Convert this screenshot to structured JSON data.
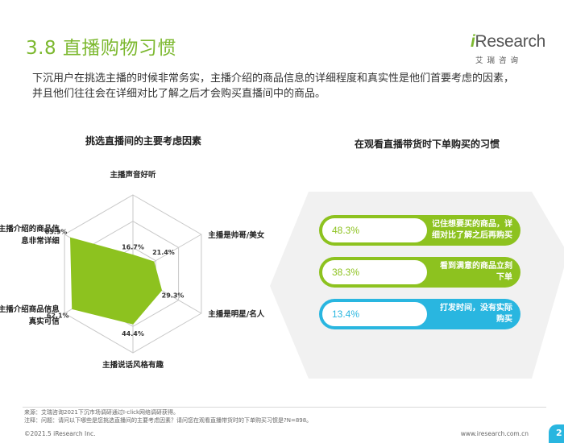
{
  "header": {
    "title": "3.8 直播购物习惯",
    "logo_main_i": "i",
    "logo_main_rest": "Research",
    "logo_sub": "艾瑞咨询"
  },
  "intro": {
    "line1": "下沉用户在挑选主播的时候非常务实，主播介绍的商品信息的详细程度和真实性是他们首要考虑的因素，",
    "line2": "并且他们往往会在详细对比了解之后才会购买直播间中的商品。"
  },
  "colors": {
    "green": "#8dc21f",
    "green_title": "#7cb82f",
    "blue": "#29b6e0",
    "grid": "#c8c8c8",
    "panel": "#f1f1f1"
  },
  "chart_data": [
    {
      "type": "radar",
      "title": "挑选直播间的主要考虑因素",
      "categories": [
        "主播声音好听",
        "主播是帅哥/美女",
        "主播是明星/名人",
        "主播说话风格有趣",
        "主播介绍商品信息真实可信",
        "主播介绍的商品信息非常详细"
      ],
      "category_lines": [
        [
          "主播声音好听"
        ],
        [
          "主播是帅哥/美女"
        ],
        [
          "主播是明星/名人"
        ],
        [
          "主播说话风格有趣"
        ],
        [
          "主播介绍商品信息",
          "真实可信"
        ],
        [
          "主播介绍的商品信",
          "息非常详细"
        ]
      ],
      "values": [
        16.7,
        21.4,
        29.3,
        44.4,
        62.1,
        63.9
      ],
      "value_labels": [
        "16.7%",
        "21.4%",
        "29.3%",
        "44.4%",
        "62.1%",
        "63.9%"
      ],
      "rmax": 70,
      "color": "#8dc21f"
    },
    {
      "type": "bar",
      "title": "在观看直播带货时下单购买的习惯",
      "categories": [
        "记住想要买的商品，详细对比了解之后再购买",
        "看到满意的商品立刻下单",
        "打发时间，没有实际购买"
      ],
      "category_lines": [
        [
          "记住想要买的商品，详",
          "细对比了解之后再购买"
        ],
        [
          "看到满意的商品立刻",
          "下单"
        ],
        [
          "打发时间，没有实际",
          "购买"
        ]
      ],
      "values": [
        48.3,
        38.3,
        13.4
      ],
      "value_labels": [
        "48.3%",
        "38.3%",
        "13.4%"
      ],
      "colors": [
        "#8dc21f",
        "#8dc21f",
        "#29b6e0"
      ]
    }
  ],
  "footer": {
    "source": "来源：艾瑞咨询2021下沉市场调研通过I-click网络调研获得。",
    "note": "注释：问题：请问以下哪些是您挑选直播间的主要考虑因素？请问您在观看直播带货时的下单购买习惯是?N=898。",
    "copyright": "©2021.5 iResearch Inc.",
    "site": "www.iresearch.com.cn",
    "page": "2"
  }
}
